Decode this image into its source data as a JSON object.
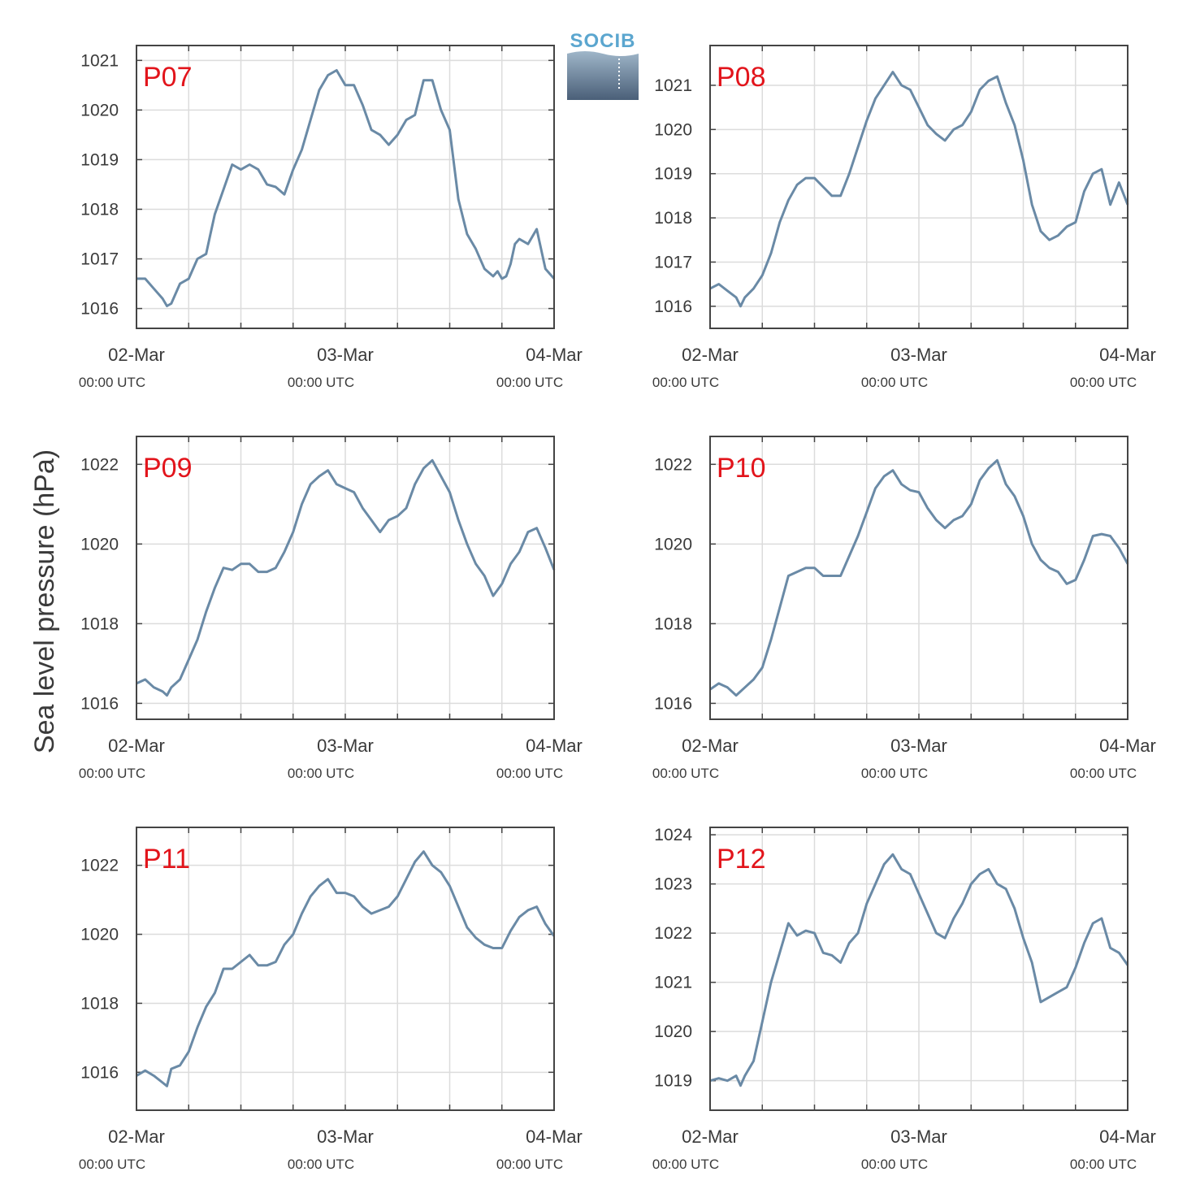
{
  "logo": {
    "text": "SOCIB"
  },
  "chart_data": {
    "type": "line",
    "ylabel": "Sea level pressure (hPa)",
    "line_color": "#6a8aa6",
    "grid": true,
    "x_range_hours": [
      0,
      48
    ],
    "x_ticks": [
      {
        "hour": 0,
        "main": "02-Mar",
        "sub": "00:00 UTC"
      },
      {
        "hour": 24,
        "main": "03-Mar",
        "sub": "00:00 UTC"
      },
      {
        "hour": 48,
        "main": "04-Mar",
        "sub": "00:00 UTC"
      }
    ],
    "panels": [
      {
        "label": "P07",
        "ylim": [
          1015.6,
          1021.3
        ],
        "yticks": [
          1016,
          1017,
          1018,
          1019,
          1020,
          1021
        ],
        "x": [
          0,
          1,
          2,
          3,
          3.5,
          4,
          5,
          6,
          7,
          8,
          8.5,
          9,
          10,
          11,
          12,
          13,
          14,
          15,
          16,
          17,
          18,
          19,
          20,
          21,
          22,
          23,
          24,
          25,
          26,
          27,
          28,
          29,
          30,
          31,
          32,
          33,
          34,
          35,
          36,
          37,
          38,
          39,
          40,
          41,
          41.5,
          42,
          42.5,
          43,
          43.5,
          44,
          45,
          46,
          47,
          48
        ],
        "y": [
          1016.6,
          1016.6,
          1016.4,
          1016.2,
          1016.05,
          1016.1,
          1016.5,
          1016.6,
          1017.0,
          1017.1,
          1017.5,
          1017.9,
          1018.4,
          1018.9,
          1018.8,
          1018.9,
          1018.8,
          1018.5,
          1018.45,
          1018.3,
          1018.8,
          1019.2,
          1019.8,
          1020.4,
          1020.7,
          1020.8,
          1020.5,
          1020.5,
          1020.1,
          1019.6,
          1019.5,
          1019.3,
          1019.5,
          1019.8,
          1019.9,
          1020.6,
          1020.6,
          1020.0,
          1019.6,
          1018.2,
          1017.5,
          1017.2,
          1016.8,
          1016.65,
          1016.75,
          1016.6,
          1016.65,
          1016.9,
          1017.3,
          1017.4,
          1017.3,
          1017.6,
          1016.8,
          1016.6
        ]
      },
      {
        "label": "P08",
        "ylim": [
          1015.5,
          1021.9
        ],
        "yticks": [
          1016,
          1017,
          1018,
          1019,
          1020,
          1021
        ],
        "x": [
          0,
          1,
          2,
          3,
          3.5,
          4,
          5,
          6,
          7,
          8,
          9,
          10,
          11,
          12,
          13,
          14,
          15,
          16,
          17,
          18,
          19,
          20,
          21,
          22,
          23,
          24,
          25,
          26,
          27,
          28,
          29,
          30,
          31,
          32,
          33,
          34,
          35,
          36,
          37,
          38,
          39,
          40,
          41,
          42,
          43,
          44,
          45,
          46,
          47,
          48
        ],
        "y": [
          1016.4,
          1016.5,
          1016.35,
          1016.2,
          1016.0,
          1016.2,
          1016.4,
          1016.7,
          1017.2,
          1017.9,
          1018.4,
          1018.75,
          1018.9,
          1018.9,
          1018.7,
          1018.5,
          1018.5,
          1019.0,
          1019.6,
          1020.2,
          1020.7,
          1021.0,
          1021.3,
          1021.0,
          1020.9,
          1020.5,
          1020.1,
          1019.9,
          1019.75,
          1020.0,
          1020.1,
          1020.4,
          1020.9,
          1021.1,
          1021.2,
          1020.6,
          1020.1,
          1019.3,
          1018.3,
          1017.7,
          1017.5,
          1017.6,
          1017.8,
          1017.9,
          1018.6,
          1019.0,
          1019.1,
          1018.3,
          1018.8,
          1018.3
        ]
      },
      {
        "label": "P09",
        "ylim": [
          1015.6,
          1022.7
        ],
        "yticks": [
          1016,
          1018,
          1020,
          1022
        ],
        "x": [
          0,
          1,
          2,
          3,
          3.5,
          4,
          5,
          6,
          7,
          8,
          9,
          10,
          11,
          12,
          13,
          14,
          15,
          16,
          17,
          18,
          19,
          20,
          21,
          22,
          23,
          24,
          25,
          26,
          27,
          28,
          29,
          30,
          31,
          32,
          33,
          34,
          35,
          36,
          37,
          38,
          39,
          40,
          41,
          42,
          43,
          44,
          45,
          46,
          47,
          48
        ],
        "y": [
          1016.5,
          1016.6,
          1016.4,
          1016.3,
          1016.2,
          1016.4,
          1016.6,
          1017.1,
          1017.6,
          1018.3,
          1018.9,
          1019.4,
          1019.35,
          1019.5,
          1019.5,
          1019.3,
          1019.3,
          1019.4,
          1019.8,
          1020.3,
          1021.0,
          1021.5,
          1021.7,
          1021.85,
          1021.5,
          1021.4,
          1021.3,
          1020.9,
          1020.6,
          1020.3,
          1020.6,
          1020.7,
          1020.9,
          1021.5,
          1021.9,
          1022.1,
          1021.7,
          1021.3,
          1020.6,
          1020.0,
          1019.5,
          1019.2,
          1018.7,
          1019.0,
          1019.5,
          1019.8,
          1020.3,
          1020.4,
          1019.9,
          1019.35
        ]
      },
      {
        "label": "P10",
        "ylim": [
          1015.6,
          1022.7
        ],
        "yticks": [
          1016,
          1018,
          1020,
          1022
        ],
        "x": [
          0,
          1,
          2,
          3,
          4,
          5,
          6,
          7,
          8,
          9,
          10,
          11,
          12,
          13,
          14,
          15,
          16,
          17,
          18,
          19,
          20,
          21,
          22,
          23,
          24,
          25,
          26,
          27,
          28,
          29,
          30,
          31,
          32,
          33,
          34,
          35,
          36,
          37,
          38,
          39,
          40,
          41,
          42,
          43,
          44,
          45,
          46,
          47,
          48
        ],
        "y": [
          1016.35,
          1016.5,
          1016.4,
          1016.2,
          1016.4,
          1016.6,
          1016.9,
          1017.6,
          1018.4,
          1019.2,
          1019.3,
          1019.4,
          1019.4,
          1019.2,
          1019.2,
          1019.2,
          1019.7,
          1020.2,
          1020.8,
          1021.4,
          1021.7,
          1021.85,
          1021.5,
          1021.35,
          1021.3,
          1020.9,
          1020.6,
          1020.4,
          1020.6,
          1020.7,
          1021.0,
          1021.6,
          1021.9,
          1022.1,
          1021.5,
          1021.2,
          1020.7,
          1020.0,
          1019.6,
          1019.4,
          1019.3,
          1019.0,
          1019.1,
          1019.6,
          1020.2,
          1020.25,
          1020.2,
          1019.9,
          1019.5
        ]
      },
      {
        "label": "P11",
        "ylim": [
          1014.9,
          1023.1
        ],
        "yticks": [
          1016,
          1018,
          1020,
          1022
        ],
        "x": [
          0,
          1,
          2,
          3,
          3.5,
          4,
          5,
          6,
          7,
          8,
          9,
          10,
          11,
          12,
          13,
          14,
          15,
          16,
          17,
          18,
          19,
          20,
          21,
          22,
          23,
          24,
          25,
          26,
          27,
          28,
          29,
          30,
          31,
          32,
          33,
          34,
          35,
          36,
          37,
          38,
          39,
          40,
          41,
          42,
          43,
          44,
          45,
          46,
          47,
          48
        ],
        "y": [
          1015.9,
          1016.05,
          1015.9,
          1015.7,
          1015.6,
          1016.1,
          1016.2,
          1016.6,
          1017.3,
          1017.9,
          1018.3,
          1019.0,
          1019.0,
          1019.2,
          1019.4,
          1019.1,
          1019.1,
          1019.2,
          1019.7,
          1020.0,
          1020.6,
          1021.1,
          1021.4,
          1021.6,
          1021.2,
          1021.2,
          1021.1,
          1020.8,
          1020.6,
          1020.7,
          1020.8,
          1021.1,
          1021.6,
          1022.1,
          1022.4,
          1022.0,
          1021.8,
          1021.4,
          1020.8,
          1020.2,
          1019.9,
          1019.7,
          1019.6,
          1019.6,
          1020.1,
          1020.5,
          1020.7,
          1020.8,
          1020.3,
          1019.95
        ]
      },
      {
        "label": "P12",
        "ylim": [
          1018.4,
          1024.15
        ],
        "yticks": [
          1019,
          1020,
          1021,
          1022,
          1023,
          1024
        ],
        "x": [
          0,
          1,
          2,
          3,
          3.5,
          4,
          5,
          6,
          7,
          8,
          9,
          10,
          11,
          12,
          13,
          14,
          15,
          16,
          17,
          18,
          19,
          20,
          21,
          22,
          23,
          24,
          25,
          26,
          27,
          28,
          29,
          30,
          31,
          32,
          33,
          34,
          35,
          36,
          37,
          38,
          39,
          40,
          41,
          42,
          43,
          44,
          45,
          46,
          47,
          48
        ],
        "y": [
          1019.0,
          1019.05,
          1019.0,
          1019.1,
          1018.9,
          1019.1,
          1019.4,
          1020.2,
          1021.0,
          1021.6,
          1022.2,
          1021.95,
          1022.05,
          1022.0,
          1021.6,
          1021.55,
          1021.4,
          1021.8,
          1022.0,
          1022.6,
          1023.0,
          1023.4,
          1023.6,
          1023.3,
          1023.2,
          1022.8,
          1022.4,
          1022.0,
          1021.9,
          1022.3,
          1022.6,
          1023.0,
          1023.2,
          1023.3,
          1023.0,
          1022.9,
          1022.5,
          1021.9,
          1021.4,
          1020.6,
          1020.7,
          1020.8,
          1020.9,
          1021.3,
          1021.8,
          1022.2,
          1022.3,
          1021.7,
          1021.6,
          1021.35
        ]
      }
    ]
  }
}
